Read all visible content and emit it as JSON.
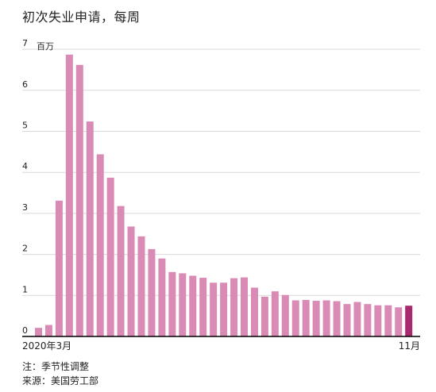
{
  "title": "初次失业申请，每周",
  "notes": {
    "note": "注：季节性调整",
    "source": "来源：美国劳工部"
  },
  "chart_data": {
    "type": "bar",
    "title": "初次失业申请，每周",
    "ylabel": "百万",
    "ylim": [
      0,
      7
    ],
    "yticks": [
      "0",
      "1",
      "2",
      "3",
      "4",
      "5",
      "6",
      "7"
    ],
    "x_start_label": "2020年3月",
    "x_end_label": "11月",
    "grid": "horizontal",
    "bar_color": "#d98bb6",
    "highlight_color": "#a8296e",
    "values": [
      0.21,
      0.28,
      3.31,
      6.87,
      6.62,
      5.24,
      4.44,
      3.87,
      3.18,
      2.68,
      2.44,
      2.13,
      1.9,
      1.57,
      1.54,
      1.48,
      1.43,
      1.31,
      1.31,
      1.42,
      1.44,
      1.19,
      0.97,
      1.1,
      1.01,
      0.88,
      0.89,
      0.87,
      0.88,
      0.86,
      0.79,
      0.84,
      0.79,
      0.76,
      0.76,
      0.71,
      0.75
    ]
  }
}
